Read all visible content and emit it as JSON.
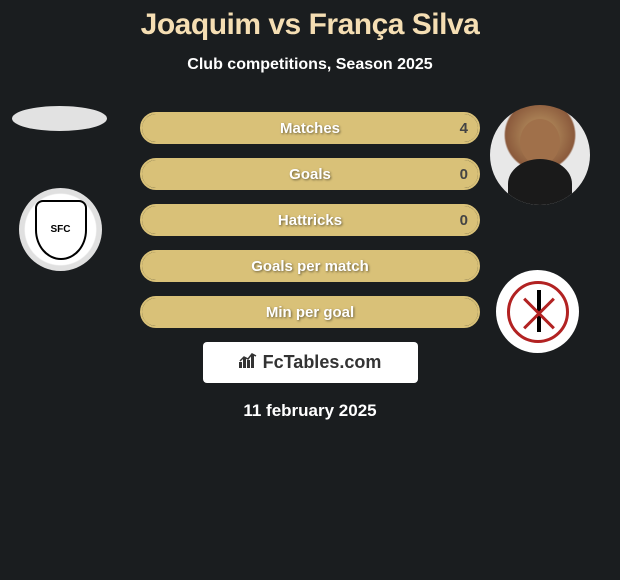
{
  "header": {
    "title": "Joaquim vs França Silva",
    "subtitle": "Club competitions, Season 2025"
  },
  "colors": {
    "background": "#1a1d1f",
    "accent": "#d9c178",
    "title": "#f5deb3",
    "text": "#ffffff",
    "box_bg": "#ffffff"
  },
  "stats": [
    {
      "label": "Matches",
      "left_val": "",
      "right_val": "4",
      "left_pct": 0,
      "right_pct": 100
    },
    {
      "label": "Goals",
      "left_val": "",
      "right_val": "0",
      "left_pct": 0,
      "right_pct": 100
    },
    {
      "label": "Hattricks",
      "left_val": "",
      "right_val": "0",
      "left_pct": 0,
      "right_pct": 100
    },
    {
      "label": "Goals per match",
      "left_val": "",
      "right_val": "",
      "left_pct": 0,
      "right_pct": 100
    },
    {
      "label": "Min per goal",
      "left_val": "",
      "right_val": "",
      "left_pct": 0,
      "right_pct": 100
    }
  ],
  "branding": {
    "text": "FcTables.com"
  },
  "footer": {
    "date": "11 february 2025"
  },
  "players": {
    "left_name": "Joaquim",
    "right_name": "França Silva"
  },
  "clubs": {
    "left_abbrev": "SFC",
    "right_abbrev": ""
  }
}
